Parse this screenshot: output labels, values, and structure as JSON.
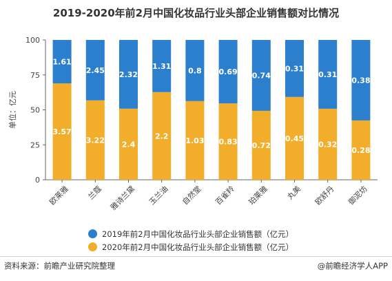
{
  "title": "2019-2020年前2月中国化妆品行业头部企业销售额对比情况",
  "source": "资料来源：前瞻产业研究院整理",
  "credit": "@前瞻经济学人APP",
  "colors": {
    "s2019": "#2c7fcc",
    "s2020": "#f2ae2a",
    "label": "#ffffff",
    "axis": "#666666",
    "grid": "#dddddd"
  },
  "chart_data": {
    "type": "bar",
    "stacked": "percent",
    "title": "2019-2020年前2月中国化妆品行业头部企业销售额对比情况",
    "ylabel": "单位：亿元",
    "ylim": [
      0,
      100
    ],
    "yticks": [
      0,
      25,
      50,
      75,
      100
    ],
    "grid": false,
    "legend_position": "bottom",
    "categories": [
      "欧莱雅",
      "兰蔻",
      "雅诗兰黛",
      "玉兰油",
      "自然堂",
      "百雀羚",
      "珀莱雅",
      "丸美",
      "欧舒丹",
      "御泥坊"
    ],
    "series": [
      {
        "name": "2019年前2月中国化妆品行业头部企业销售额（亿元）",
        "values": [
          1.61,
          2.45,
          2.32,
          1.31,
          0.8,
          0.69,
          0.74,
          0.31,
          0.31,
          0.38
        ]
      },
      {
        "name": "2020年前2月中国化妆品行业头部企业销售额（亿元）",
        "values": [
          3.57,
          3.22,
          2.4,
          2.2,
          1.03,
          0.83,
          0.72,
          0.45,
          0.32,
          0.28
        ]
      }
    ]
  }
}
